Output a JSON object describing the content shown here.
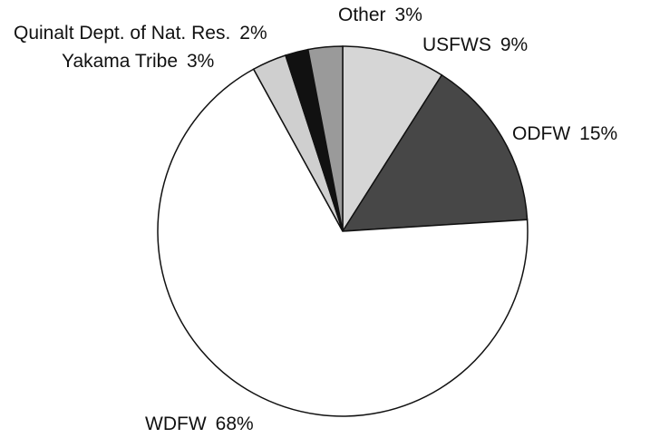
{
  "chart_data": {
    "type": "pie",
    "categories": [
      "USFWS",
      "ODFW",
      "WDFW",
      "Yakama Tribe",
      "Quinalt Dept. of Nat. Res.",
      "Other"
    ],
    "values": [
      9,
      15,
      68,
      3,
      2,
      3
    ],
    "value_labels": [
      "9%",
      "15%",
      "68%",
      "3%",
      "2%",
      "3%"
    ],
    "colors": [
      "#d6d6d6",
      "#474747",
      "#ffffff",
      "#cfcfcf",
      "#111111",
      "#9a9a9a"
    ]
  }
}
